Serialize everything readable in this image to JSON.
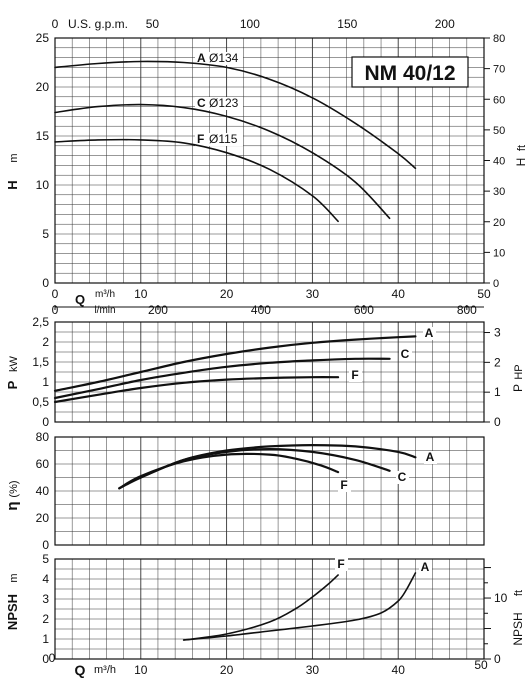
{
  "chart_data": [
    {
      "type": "line",
      "title": "NM 40/12",
      "xlabel_q": "Q",
      "x_unit": "m³/h",
      "x_ticks": [
        0,
        10,
        20,
        30,
        40,
        50
      ],
      "xlim": [
        0,
        50
      ],
      "top_axis_gpm_label": "U.S. g.p.m.",
      "top_axis_gpm_ticks": [
        "0",
        "50",
        "100",
        "150",
        "200"
      ],
      "top_axis_lmin_label": "l/min",
      "top_axis_lmin_ticks": [
        "0",
        "200",
        "400",
        "600",
        "800"
      ],
      "ylabel": "H",
      "y_unit": "m",
      "ylim": [
        0,
        25
      ],
      "y_ticks": [
        0,
        5,
        10,
        15,
        20,
        25
      ],
      "y2label": "H",
      "y2_unit": "ft",
      "y2_ticks": [
        0,
        10,
        20,
        30,
        40,
        50,
        60,
        70,
        80
      ],
      "grid": true,
      "series": [
        {
          "name": "A",
          "diameter": "Ø134",
          "x": [
            0,
            5,
            10,
            15,
            20,
            25,
            30,
            35,
            40,
            42
          ],
          "y": [
            22.0,
            22.4,
            22.6,
            22.5,
            22.0,
            20.8,
            18.9,
            16.3,
            13.2,
            11.7
          ]
        },
        {
          "name": "C",
          "diameter": "Ø123",
          "x": [
            0,
            5,
            10,
            15,
            20,
            25,
            30,
            35,
            39
          ],
          "y": [
            17.4,
            18.0,
            18.2,
            17.9,
            17.0,
            15.5,
            13.3,
            10.3,
            6.6
          ]
        },
        {
          "name": "F",
          "diameter": "Ø115",
          "x": [
            0,
            5,
            10,
            15,
            20,
            25,
            30,
            33
          ],
          "y": [
            14.4,
            14.6,
            14.6,
            14.3,
            13.3,
            11.6,
            8.9,
            6.3
          ]
        }
      ]
    },
    {
      "type": "line",
      "ylabel": "P",
      "y_unit": "kW",
      "ylim": [
        0,
        2.5
      ],
      "y_ticks": [
        "0",
        "0,5",
        "1",
        "1,5",
        "2",
        "2,5"
      ],
      "y2label": "P",
      "y2_unit": "HP",
      "y2_ticks": [
        "0",
        "1",
        "2",
        "3"
      ],
      "grid": true,
      "series": [
        {
          "name": "A",
          "x": [
            0,
            5,
            10,
            15,
            20,
            25,
            30,
            35,
            40,
            42
          ],
          "y": [
            0.78,
            1.0,
            1.25,
            1.5,
            1.7,
            1.86,
            1.98,
            2.06,
            2.12,
            2.14
          ]
        },
        {
          "name": "C",
          "x": [
            0,
            5,
            10,
            15,
            20,
            25,
            30,
            35,
            39
          ],
          "y": [
            0.6,
            0.82,
            1.05,
            1.23,
            1.38,
            1.48,
            1.54,
            1.58,
            1.58
          ]
        },
        {
          "name": "F",
          "x": [
            0,
            5,
            10,
            15,
            20,
            25,
            30,
            33
          ],
          "y": [
            0.5,
            0.68,
            0.85,
            0.98,
            1.06,
            1.1,
            1.12,
            1.12
          ]
        }
      ]
    },
    {
      "type": "line",
      "ylabel": "η",
      "y_unit": "(%)",
      "ylim": [
        0,
        80
      ],
      "y_ticks": [
        "0",
        "20",
        "40",
        "60",
        "80"
      ],
      "grid": true,
      "series": [
        {
          "name": "A",
          "x": [
            7.5,
            10,
            15,
            20,
            25,
            30,
            35,
            40,
            42
          ],
          "y": [
            42,
            50,
            63,
            70,
            73,
            74,
            73,
            69,
            65
          ]
        },
        {
          "name": "C",
          "x": [
            7.5,
            10,
            15,
            20,
            25,
            30,
            35,
            39
          ],
          "y": [
            42,
            50,
            63,
            69,
            71,
            69,
            63,
            55
          ]
        },
        {
          "name": "F",
          "x": [
            7.5,
            10,
            15,
            20,
            25,
            28,
            31,
            33
          ],
          "y": [
            42,
            51,
            62,
            67,
            67,
            64,
            59,
            54
          ]
        }
      ]
    },
    {
      "type": "line",
      "ylabel": "NPSH",
      "y_unit": "m",
      "ylim": [
        0,
        5
      ],
      "y_ticks": [
        "0",
        "1",
        "2",
        "3",
        "4",
        "5"
      ],
      "y2label": "NPSH",
      "y2_unit": "ft",
      "y2_ticks": [
        "0",
        "10"
      ],
      "xlabel": "Q",
      "x_unit": "m³/h",
      "x_ticks": [
        "0",
        "10",
        "20",
        "30",
        "40",
        "50"
      ],
      "grid": true,
      "series": [
        {
          "name": "A",
          "x": [
            15,
            20,
            25,
            30,
            35,
            38,
            40,
            41,
            42
          ],
          "y": [
            0.95,
            1.15,
            1.4,
            1.65,
            1.95,
            2.3,
            2.9,
            3.5,
            4.3
          ]
        },
        {
          "name": "F",
          "x": [
            15,
            20,
            25,
            28,
            30,
            32,
            33
          ],
          "y": [
            0.95,
            1.25,
            1.85,
            2.5,
            3.1,
            3.8,
            4.2
          ]
        }
      ]
    }
  ]
}
